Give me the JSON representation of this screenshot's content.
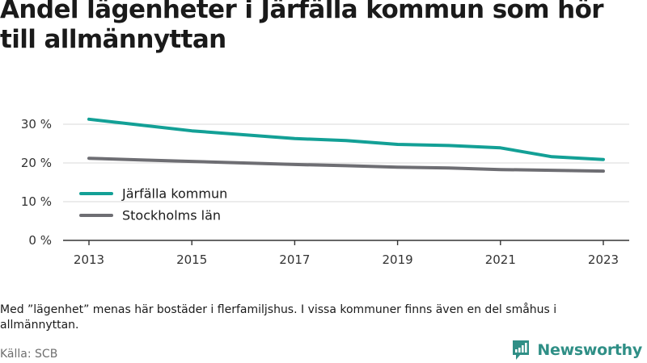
{
  "title": "Andel lägenheter i Järfälla kommun som hör till allmännyttan",
  "note": "Med ”lägenhet” menas här bostäder i flerfamiljshus. I vissa kommuner finns även en del småhus i allmännyttan.",
  "source": "Källa: SCB",
  "brand": {
    "name": "Newsworthy",
    "icon": "newsworthy-logo-icon",
    "color": "#2f8f86"
  },
  "chart_data": {
    "type": "line",
    "x": [
      2013,
      2014,
      2015,
      2016,
      2017,
      2018,
      2019,
      2020,
      2021,
      2022,
      2023
    ],
    "series": [
      {
        "name": "Järfälla kommun",
        "color": "#13a096",
        "values": [
          31.3,
          29.8,
          28.3,
          27.3,
          26.3,
          25.8,
          24.8,
          24.5,
          23.9,
          21.6,
          20.9
        ]
      },
      {
        "name": "Stockholms län",
        "color": "#6e6e73",
        "values": [
          21.2,
          20.8,
          20.4,
          20.0,
          19.6,
          19.3,
          18.9,
          18.7,
          18.3,
          18.1,
          17.9
        ]
      }
    ],
    "xticks": [
      "2013",
      "2015",
      "2017",
      "2019",
      "2021",
      "2023"
    ],
    "yticks": [
      "0 %",
      "10 %",
      "20 %",
      "30 %"
    ],
    "ylim": [
      0,
      30
    ],
    "grid": true,
    "legend_position": "bottom-left"
  }
}
